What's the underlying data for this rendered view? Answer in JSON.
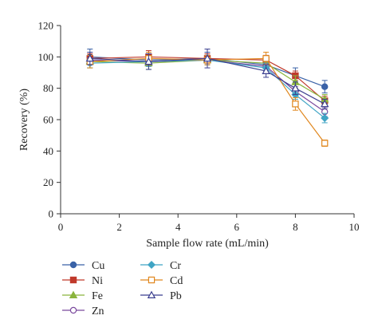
{
  "chart_data": {
    "type": "line",
    "title": "",
    "xlabel": "Sample flow rate (mL/min)",
    "ylabel": "Recovery (%)",
    "xlim": [
      0,
      10
    ],
    "ylim": [
      0,
      120
    ],
    "xticks": [
      "0",
      "2",
      "4",
      "6",
      "8",
      "10"
    ],
    "yticks": [
      "0",
      "20",
      "40",
      "60",
      "80",
      "100",
      "120"
    ],
    "x": [
      1,
      3,
      5,
      7,
      8,
      9
    ],
    "grid": false,
    "legend_position": "bottom",
    "series": [
      {
        "name": "Cu",
        "marker": "circle-filled",
        "color": "#3a62a7",
        "values": [
          100,
          98,
          99,
          95,
          88,
          81
        ],
        "errors": [
          5,
          4,
          4,
          4,
          5,
          4
        ]
      },
      {
        "name": "Ni",
        "marker": "square-filled",
        "color": "#c0392b",
        "values": [
          99,
          100,
          99,
          98,
          88,
          72
        ],
        "errors": [
          3,
          4,
          3,
          3,
          3,
          3
        ]
      },
      {
        "name": "Fe",
        "marker": "triangle-filled",
        "color": "#8ab43c",
        "values": [
          97,
          96,
          98,
          96,
          84,
          73
        ],
        "errors": [
          4,
          4,
          3,
          3,
          4,
          3
        ]
      },
      {
        "name": "Zn",
        "marker": "circle-open",
        "color": "#7b4a9e",
        "values": [
          98,
          97,
          98,
          94,
          78,
          65
        ],
        "errors": [
          3,
          3,
          3,
          3,
          3,
          3
        ]
      },
      {
        "name": "Cr",
        "marker": "diamond-filled",
        "color": "#3fa4c4",
        "values": [
          96,
          97,
          98,
          93,
          76,
          61
        ],
        "errors": [
          3,
          3,
          3,
          3,
          3,
          3
        ]
      },
      {
        "name": "Cd",
        "marker": "square-open",
        "color": "#e0871e",
        "values": [
          97,
          99,
          98,
          99,
          70,
          45
        ],
        "errors": [
          4,
          4,
          3,
          4,
          4,
          2
        ]
      },
      {
        "name": "Pb",
        "marker": "triangle-open",
        "color": "#3b3f8f",
        "values": [
          99,
          97,
          99,
          91,
          80,
          70
        ],
        "errors": [
          4,
          5,
          6,
          4,
          4,
          3
        ]
      }
    ]
  }
}
